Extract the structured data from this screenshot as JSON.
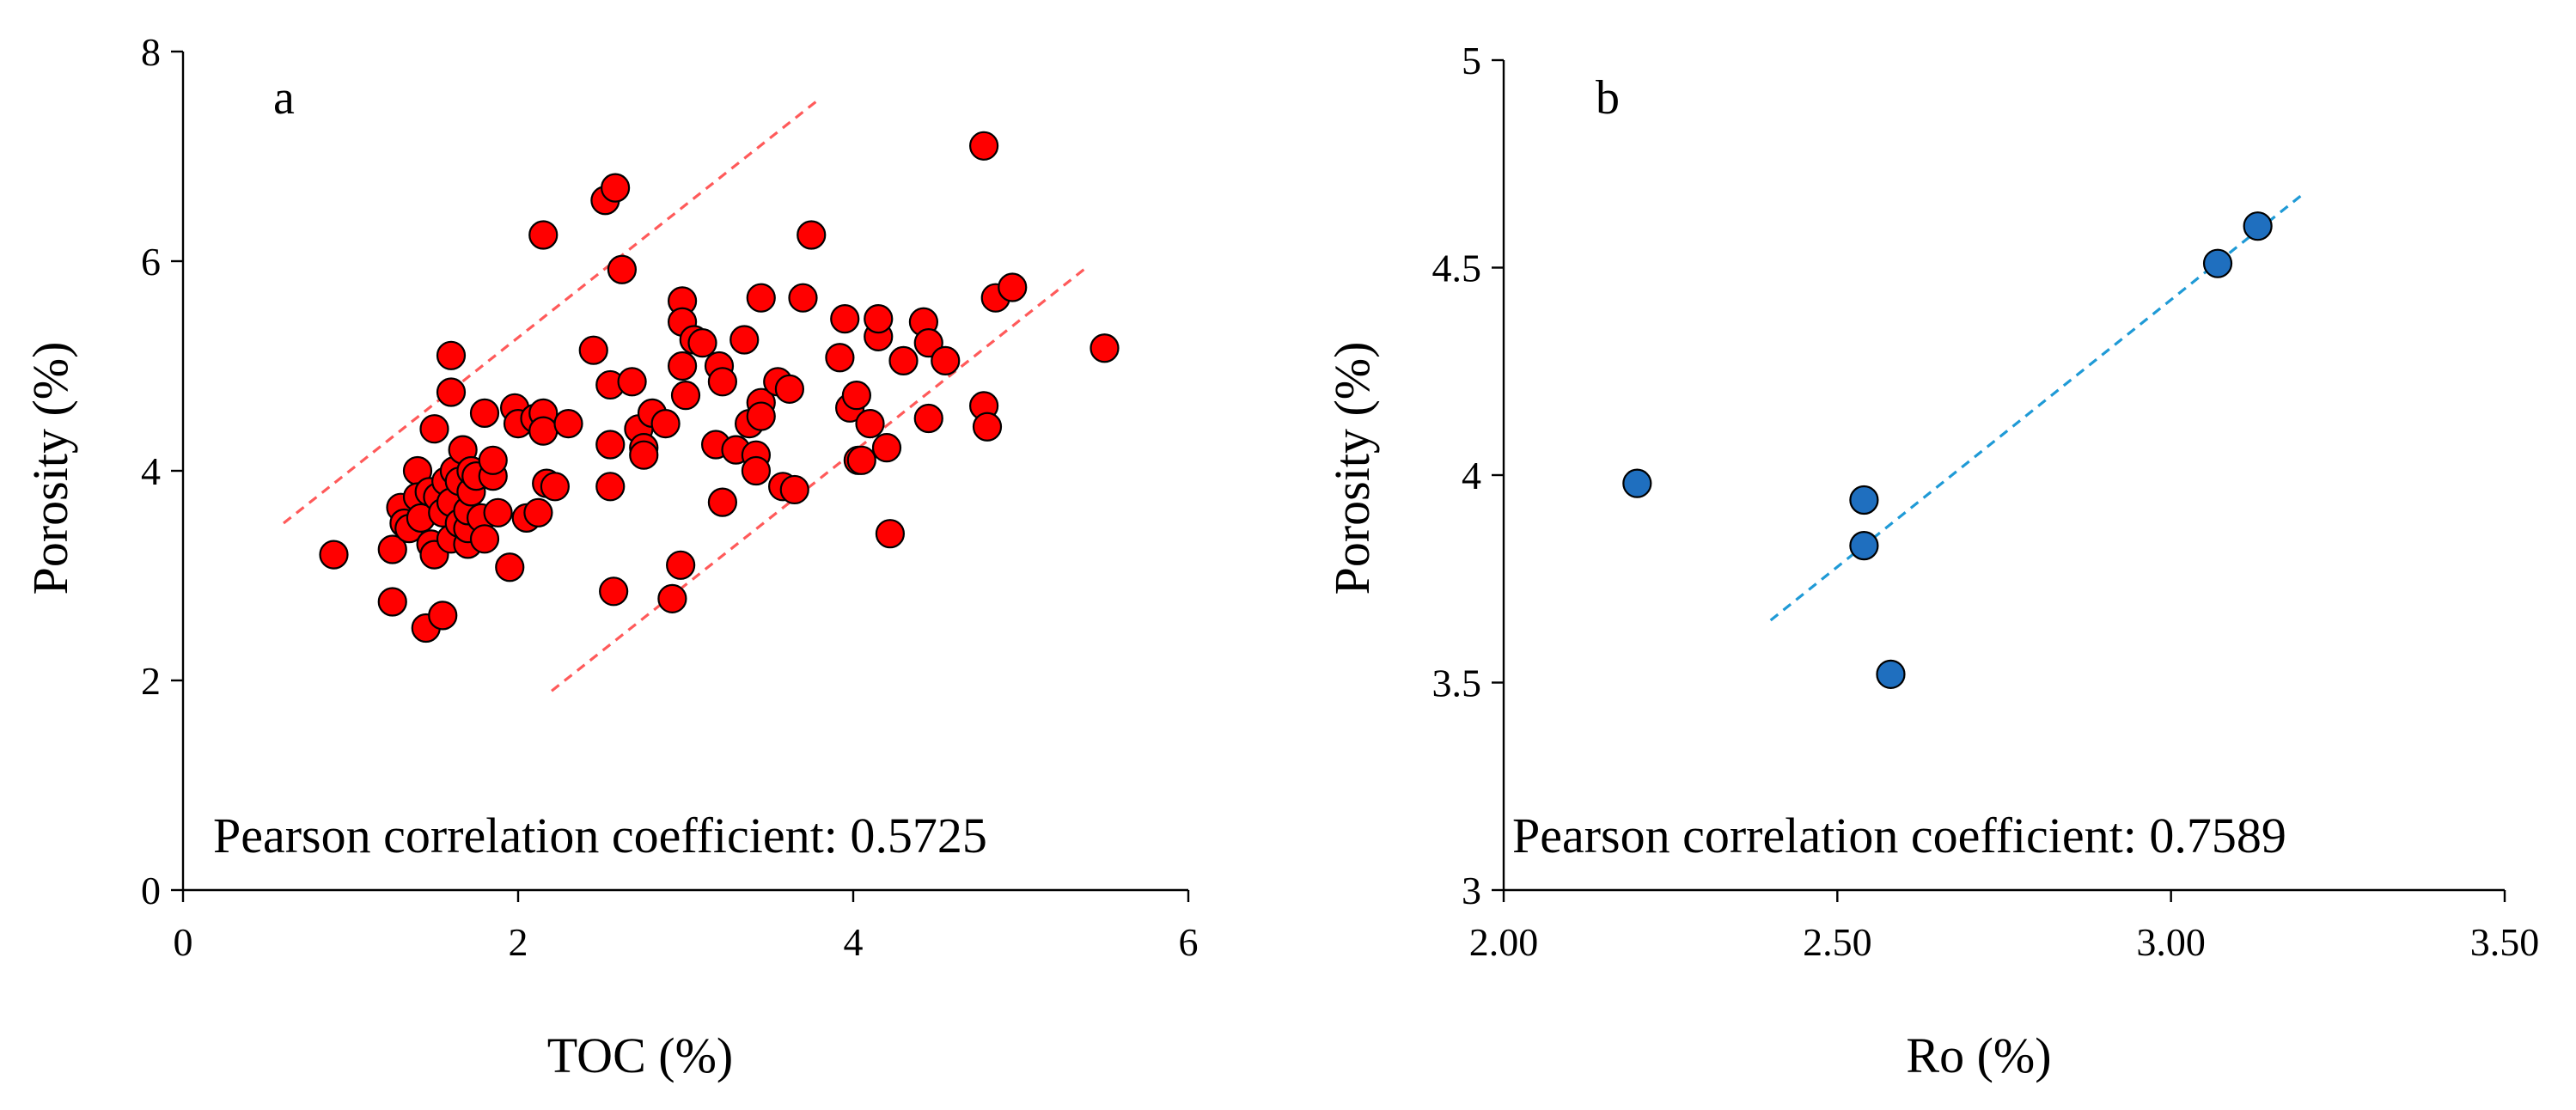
{
  "chart_data": [
    {
      "panel": "a",
      "type": "scatter",
      "xlabel": "TOC (%)",
      "ylabel": "Porosity (%)",
      "xlim": [
        0,
        6
      ],
      "ylim": [
        0,
        8
      ],
      "xticks": [
        0,
        2,
        4,
        6
      ],
      "yticks": [
        0,
        2,
        4,
        6,
        8
      ],
      "xtick_labels": [
        "0",
        "2",
        "4",
        "6"
      ],
      "ytick_labels": [
        "0",
        "2",
        "4",
        "6",
        "8"
      ],
      "annotation": "Pearson correlation coefficient: 0.5725",
      "marker_color": "#ff0000",
      "trend_color": "#ff5a5a",
      "trend_lines": [
        {
          "name": "upper-bound",
          "x": [
            0.6,
            3.8
          ],
          "y": [
            3.5,
            7.55
          ]
        },
        {
          "name": "lower-bound",
          "x": [
            2.2,
            5.4
          ],
          "y": [
            1.9,
            5.95
          ]
        }
      ],
      "points": [
        [
          0.9,
          3.2
        ],
        [
          1.25,
          2.75
        ],
        [
          1.25,
          3.25
        ],
        [
          1.3,
          3.65
        ],
        [
          1.32,
          3.5
        ],
        [
          1.35,
          3.45
        ],
        [
          1.4,
          4.0
        ],
        [
          1.4,
          3.75
        ],
        [
          1.42,
          3.55
        ],
        [
          1.45,
          2.5
        ],
        [
          1.47,
          3.8
        ],
        [
          1.48,
          3.3
        ],
        [
          1.5,
          3.2
        ],
        [
          1.5,
          4.4
        ],
        [
          1.52,
          3.75
        ],
        [
          1.55,
          2.62
        ],
        [
          1.55,
          3.6
        ],
        [
          1.57,
          3.9
        ],
        [
          1.6,
          3.35
        ],
        [
          1.6,
          3.7
        ],
        [
          1.6,
          4.75
        ],
        [
          1.6,
          5.1
        ],
        [
          1.62,
          4.0
        ],
        [
          1.65,
          3.5
        ],
        [
          1.65,
          3.9
        ],
        [
          1.67,
          4.2
        ],
        [
          1.7,
          3.3
        ],
        [
          1.7,
          3.45
        ],
        [
          1.7,
          3.62
        ],
        [
          1.72,
          3.8
        ],
        [
          1.72,
          4.0
        ],
        [
          1.75,
          3.95
        ],
        [
          1.78,
          3.55
        ],
        [
          1.8,
          4.55
        ],
        [
          1.8,
          3.35
        ],
        [
          1.85,
          3.95
        ],
        [
          1.85,
          4.1
        ],
        [
          1.88,
          3.6
        ],
        [
          1.95,
          3.08
        ],
        [
          1.98,
          4.6
        ],
        [
          2.0,
          4.45
        ],
        [
          2.05,
          3.55
        ],
        [
          2.1,
          4.5
        ],
        [
          2.12,
          3.6
        ],
        [
          2.15,
          4.55
        ],
        [
          2.15,
          4.38
        ],
        [
          2.15,
          6.25
        ],
        [
          2.17,
          3.88
        ],
        [
          2.22,
          3.85
        ],
        [
          2.3,
          4.45
        ],
        [
          2.45,
          5.15
        ],
        [
          2.52,
          6.58
        ],
        [
          2.55,
          3.85
        ],
        [
          2.55,
          4.25
        ],
        [
          2.55,
          4.82
        ],
        [
          2.57,
          2.85
        ],
        [
          2.58,
          6.7
        ],
        [
          2.62,
          5.92
        ],
        [
          2.68,
          4.85
        ],
        [
          2.72,
          4.4
        ],
        [
          2.75,
          4.22
        ],
        [
          2.75,
          4.15
        ],
        [
          2.8,
          4.55
        ],
        [
          2.88,
          4.45
        ],
        [
          2.92,
          2.78
        ],
        [
          2.97,
          3.1
        ],
        [
          2.98,
          5.62
        ],
        [
          2.98,
          5.42
        ],
        [
          2.98,
          5.0
        ],
        [
          3.0,
          4.72
        ],
        [
          3.05,
          5.25
        ],
        [
          3.1,
          5.22
        ],
        [
          3.18,
          4.25
        ],
        [
          3.2,
          5.0
        ],
        [
          3.22,
          4.85
        ],
        [
          3.22,
          3.7
        ],
        [
          3.3,
          4.2
        ],
        [
          3.35,
          5.25
        ],
        [
          3.38,
          4.45
        ],
        [
          3.42,
          4.15
        ],
        [
          3.42,
          4.0
        ],
        [
          3.45,
          4.65
        ],
        [
          3.45,
          4.52
        ],
        [
          3.45,
          5.65
        ],
        [
          3.55,
          4.85
        ],
        [
          3.58,
          3.85
        ],
        [
          3.62,
          4.78
        ],
        [
          3.65,
          3.82
        ],
        [
          3.7,
          5.65
        ],
        [
          3.75,
          6.25
        ],
        [
          3.92,
          5.08
        ],
        [
          3.95,
          5.45
        ],
        [
          3.98,
          4.6
        ],
        [
          4.02,
          4.72
        ],
        [
          4.03,
          4.1
        ],
        [
          4.05,
          4.1
        ],
        [
          4.1,
          4.45
        ],
        [
          4.15,
          5.28
        ],
        [
          4.15,
          5.45
        ],
        [
          4.2,
          4.22
        ],
        [
          4.22,
          3.4
        ],
        [
          4.3,
          5.05
        ],
        [
          4.42,
          5.42
        ],
        [
          4.45,
          5.22
        ],
        [
          4.45,
          4.5
        ],
        [
          4.55,
          5.05
        ],
        [
          4.78,
          7.1
        ],
        [
          4.78,
          4.62
        ],
        [
          4.8,
          4.42
        ],
        [
          4.85,
          5.65
        ],
        [
          4.95,
          5.75
        ],
        [
          5.5,
          5.17
        ]
      ]
    },
    {
      "panel": "b",
      "type": "scatter",
      "xlabel": "Ro (%)",
      "ylabel": "Porosity (%)",
      "xlim": [
        2.0,
        3.5
      ],
      "ylim": [
        3,
        5
      ],
      "xticks": [
        2.0,
        2.5,
        3.0,
        3.5
      ],
      "yticks": [
        3,
        3.5,
        4,
        4.5,
        5
      ],
      "xtick_labels": [
        "2.00",
        "2.50",
        "3.00",
        "3.50"
      ],
      "ytick_labels": [
        "3",
        "3.5",
        "4",
        "4.5",
        "5"
      ],
      "annotation": "Pearson correlation coefficient: 0.7589",
      "marker_color": "#1f6fbf",
      "trend_color": "#1f9ad6",
      "trend_lines": [
        {
          "name": "fit-line",
          "x": [
            2.4,
            3.2
          ],
          "y": [
            3.65,
            4.68
          ]
        }
      ],
      "points": [
        [
          2.2,
          3.98
        ],
        [
          2.54,
          3.94
        ],
        [
          2.54,
          3.83
        ],
        [
          2.58,
          3.52
        ],
        [
          3.07,
          4.51
        ],
        [
          3.13,
          4.6
        ]
      ]
    }
  ]
}
